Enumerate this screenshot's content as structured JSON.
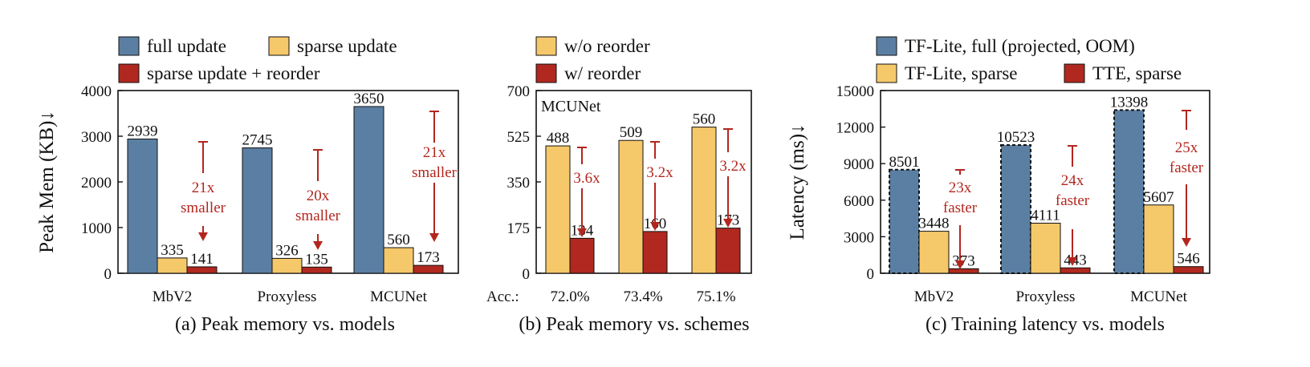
{
  "colors": {
    "blue": "#5b7fa3",
    "yellow": "#f5c86a",
    "red": "#b0281f",
    "arrow": "#b3261e",
    "text": "#111111"
  },
  "chart_data": [
    {
      "type": "bar",
      "caption": "(a) Peak memory vs. models",
      "ylabel": "Peak Mem (KB)↓",
      "ylim": [
        0,
        4000
      ],
      "yticks": [
        0,
        1000,
        2000,
        3000,
        4000
      ],
      "categories": [
        "MbV2",
        "Proxyless",
        "MCUNet"
      ],
      "series": [
        {
          "name": "full update",
          "color": "#5b7fa3",
          "values": [
            2939,
            2745,
            3650
          ],
          "dashed": false
        },
        {
          "name": "sparse update",
          "color": "#f5c86a",
          "values": [
            335,
            326,
            560
          ],
          "dashed": false
        },
        {
          "name": "sparse update + reorder",
          "color": "#b0281f",
          "values": [
            141,
            135,
            173
          ],
          "dashed": false
        }
      ],
      "annotations": [
        [
          "21x",
          "smaller"
        ],
        [
          "20x",
          "smaller"
        ],
        [
          "21x",
          "smaller"
        ]
      ]
    },
    {
      "type": "bar",
      "caption": "(b)  Peak memory vs. schemes",
      "inset_label": "MCUNet",
      "ylim": [
        0,
        700
      ],
      "yticks": [
        0,
        175,
        350,
        525,
        700
      ],
      "categories": [
        "72.0%",
        "73.4%",
        "75.1%"
      ],
      "category_prefix": "Acc.:",
      "series": [
        {
          "name": "w/o reorder",
          "color": "#f5c86a",
          "values": [
            488,
            509,
            560
          ],
          "dashed": false
        },
        {
          "name": "w/ reorder",
          "color": "#b0281f",
          "values": [
            134,
            160,
            173
          ],
          "dashed": false
        }
      ],
      "annotations": [
        [
          "3.6x"
        ],
        [
          "3.2x"
        ],
        [
          "3.2x"
        ]
      ]
    },
    {
      "type": "bar",
      "caption": "(c) Training latency vs. models",
      "ylabel": "Latency (ms)↓",
      "ylim": [
        0,
        15000
      ],
      "yticks": [
        0,
        3000,
        6000,
        9000,
        12000,
        15000
      ],
      "categories": [
        "MbV2",
        "Proxyless",
        "MCUNet"
      ],
      "series": [
        {
          "name": "TF-Lite, full (projected, OOM)",
          "color": "#5b7fa3",
          "values": [
            8501,
            10523,
            13398
          ],
          "dashed": true
        },
        {
          "name": "TF-Lite, sparse",
          "color": "#f5c86a",
          "values": [
            3448,
            4111,
            5607
          ],
          "dashed": false
        },
        {
          "name": "TTE, sparse",
          "color": "#b0281f",
          "values": [
            373,
            443,
            546
          ],
          "dashed": false
        }
      ],
      "annotations": [
        [
          "23x",
          "faster"
        ],
        [
          "24x",
          "faster"
        ],
        [
          "25x",
          "faster"
        ]
      ]
    }
  ]
}
